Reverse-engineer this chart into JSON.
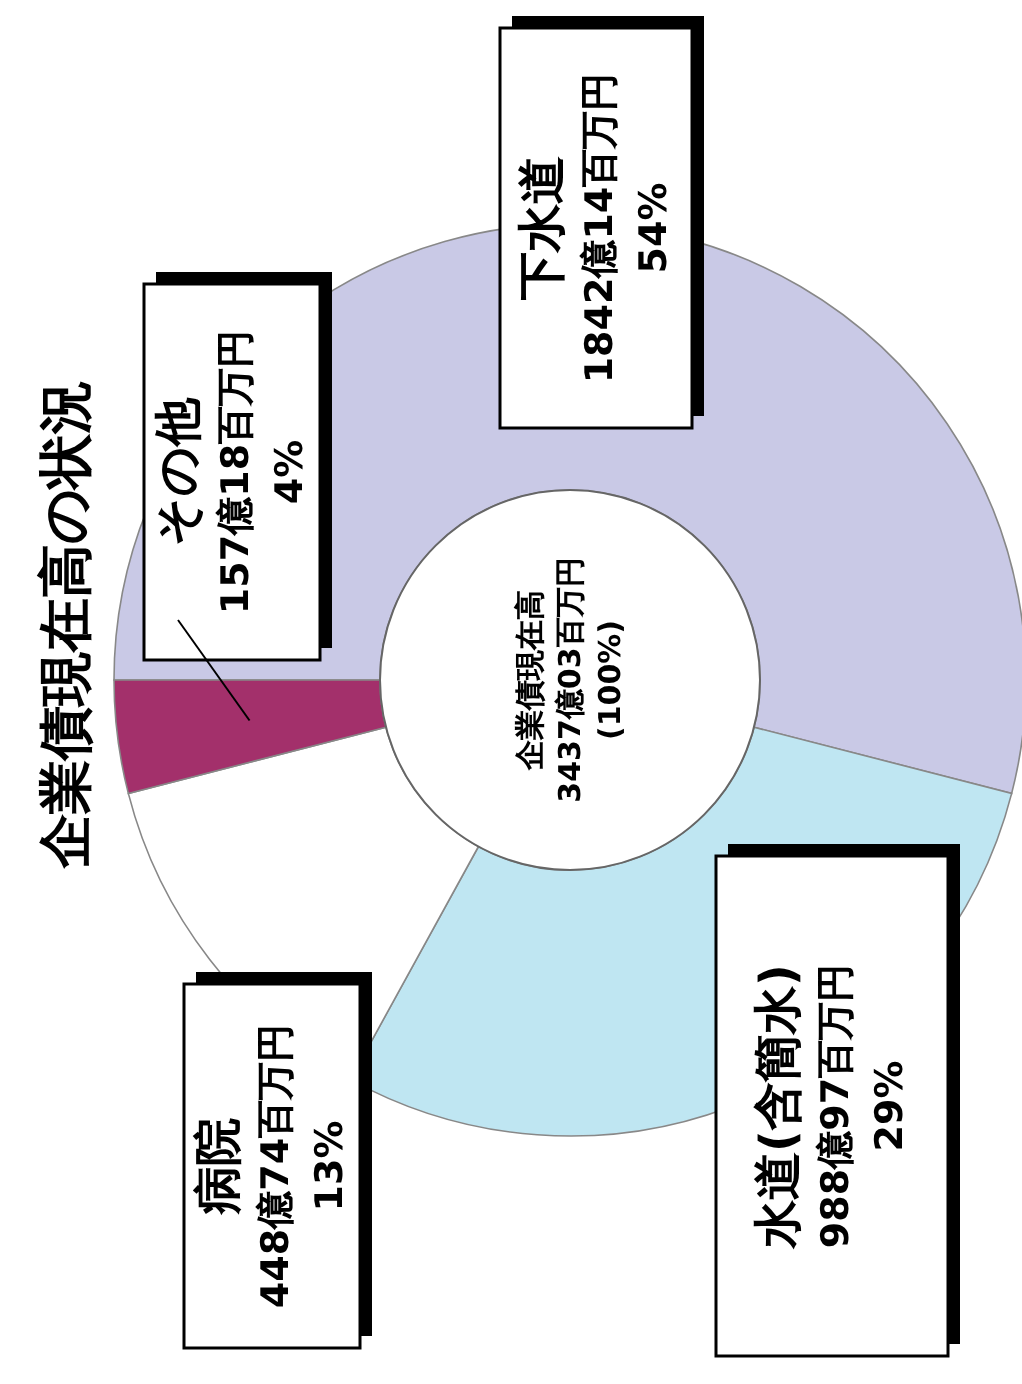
{
  "chart_data": {
    "type": "donut",
    "title": "企業債現在高の状況",
    "categories": [
      "下水道",
      "水道(含簡水)",
      "病院",
      "その他"
    ],
    "values": [
      54,
      29,
      13,
      4
    ],
    "value_labels": [
      "1842億14百万円\n54%",
      "988億97百万円\n29%",
      "448億74百万円\n13%",
      "157億18百万円\n4%"
    ],
    "colors": [
      "#c9c9e6",
      "#bfe6f2",
      "#ffffff",
      "#a3306b"
    ],
    "annotations": [
      "企業債現在高\n3437億03百万円\n(100%)"
    ],
    "legend": false
  }
}
